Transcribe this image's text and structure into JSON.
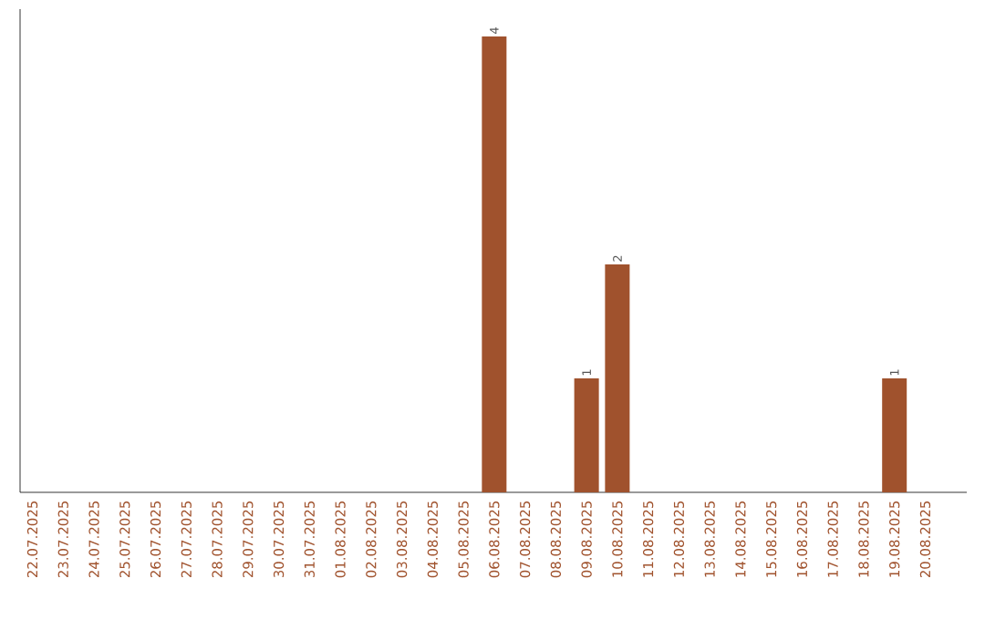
{
  "chart_data": {
    "type": "bar",
    "categories": [
      "22.07.2025",
      "23.07.2025",
      "24.07.2025",
      "25.07.2025",
      "26.07.2025",
      "27.07.2025",
      "28.07.2025",
      "29.07.2025",
      "30.07.2025",
      "31.07.2025",
      "01.08.2025",
      "02.08.2025",
      "03.08.2025",
      "04.08.2025",
      "05.08.2025",
      "06.08.2025",
      "07.08.2025",
      "08.08.2025",
      "09.08.2025",
      "10.08.2025",
      "11.08.2025",
      "12.08.2025",
      "13.08.2025",
      "14.08.2025",
      "15.08.2025",
      "16.08.2025",
      "17.08.2025",
      "18.08.2025",
      "19.08.2025",
      "20.08.2025"
    ],
    "values": [
      null,
      null,
      null,
      null,
      null,
      null,
      null,
      null,
      null,
      null,
      null,
      null,
      null,
      null,
      null,
      4,
      null,
      null,
      1,
      2,
      null,
      null,
      null,
      null,
      null,
      null,
      null,
      null,
      1,
      null
    ],
    "data_labels": true,
    "color": "#a0522d"
  }
}
